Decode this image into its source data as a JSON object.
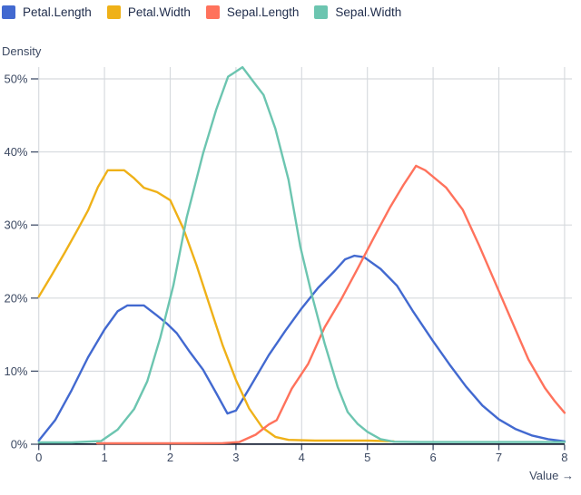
{
  "chart_data": {
    "type": "line",
    "title": "",
    "ylabel": "Density",
    "xlabel": "Value →",
    "xlim": [
      0,
      8
    ],
    "ylim": [
      0,
      52
    ],
    "y_unit": "%",
    "grid": true,
    "legend_position": "top-left",
    "x_ticks": [
      "0",
      "1",
      "2",
      "3",
      "4",
      "5",
      "6",
      "7",
      "8"
    ],
    "x_tick_values": [
      0,
      1,
      2,
      3,
      4,
      5,
      6,
      7,
      8
    ],
    "y_ticks": [
      "0%",
      "10%",
      "20%",
      "30%",
      "40%",
      "50%"
    ],
    "y_tick_values": [
      0,
      10,
      20,
      30,
      40,
      50
    ],
    "colors": {
      "grid": "#d6dade",
      "axis_text": "#3d4a63",
      "tick": "#42506b",
      "baseline": "#1b2438"
    },
    "series": [
      {
        "name": "Petal.Length",
        "color": "#4269d0",
        "points": [
          [
            0,
            0.5
          ],
          [
            0.25,
            3.3
          ],
          [
            0.5,
            7.4
          ],
          [
            0.75,
            11.9
          ],
          [
            1.0,
            15.7
          ],
          [
            1.2,
            18.2
          ],
          [
            1.35,
            19.0
          ],
          [
            1.6,
            19.0
          ],
          [
            1.8,
            17.6
          ],
          [
            1.95,
            16.5
          ],
          [
            2.1,
            15.2
          ],
          [
            2.3,
            12.6
          ],
          [
            2.5,
            10.2
          ],
          [
            2.7,
            7.0
          ],
          [
            2.87,
            4.2
          ],
          [
            3.0,
            4.6
          ],
          [
            3.2,
            7.6
          ],
          [
            3.5,
            12.2
          ],
          [
            3.75,
            15.5
          ],
          [
            4.0,
            18.6
          ],
          [
            4.25,
            21.4
          ],
          [
            4.5,
            23.7
          ],
          [
            4.66,
            25.3
          ],
          [
            4.8,
            25.8
          ],
          [
            4.95,
            25.6
          ],
          [
            5.2,
            24.0
          ],
          [
            5.45,
            21.7
          ],
          [
            5.7,
            18.1
          ],
          [
            6.0,
            14.1
          ],
          [
            6.25,
            10.9
          ],
          [
            6.5,
            7.9
          ],
          [
            6.75,
            5.3
          ],
          [
            7.0,
            3.4
          ],
          [
            7.25,
            2.1
          ],
          [
            7.5,
            1.2
          ],
          [
            7.75,
            0.7
          ],
          [
            8,
            0.4
          ]
        ]
      },
      {
        "name": "Petal.Width",
        "color": "#efb118",
        "points": [
          [
            0,
            20.2
          ],
          [
            0.2,
            23.2
          ],
          [
            0.4,
            26.3
          ],
          [
            0.6,
            29.5
          ],
          [
            0.75,
            32.0
          ],
          [
            0.9,
            35.2
          ],
          [
            1.05,
            37.5
          ],
          [
            1.3,
            37.5
          ],
          [
            1.45,
            36.4
          ],
          [
            1.6,
            35.1
          ],
          [
            1.8,
            34.5
          ],
          [
            2.0,
            33.4
          ],
          [
            2.2,
            29.5
          ],
          [
            2.4,
            24.5
          ],
          [
            2.6,
            19.0
          ],
          [
            2.8,
            13.5
          ],
          [
            3.0,
            8.8
          ],
          [
            3.2,
            4.9
          ],
          [
            3.4,
            2.3
          ],
          [
            3.6,
            1.0
          ],
          [
            3.8,
            0.6
          ],
          [
            4.2,
            0.5
          ],
          [
            4.6,
            0.5
          ],
          [
            5.0,
            0.5
          ],
          [
            5.4,
            0.4
          ]
        ]
      },
      {
        "name": "Sepal.Length",
        "color": "#ff725c",
        "points": [
          [
            0.89,
            0.12
          ],
          [
            1.5,
            0.12
          ],
          [
            2.2,
            0.12
          ],
          [
            2.8,
            0.15
          ],
          [
            3.05,
            0.3
          ],
          [
            3.3,
            1.3
          ],
          [
            3.5,
            2.7
          ],
          [
            3.62,
            3.3
          ],
          [
            3.85,
            7.6
          ],
          [
            4.1,
            11.0
          ],
          [
            4.35,
            16.0
          ],
          [
            4.6,
            19.8
          ],
          [
            4.85,
            24.0
          ],
          [
            5.1,
            28.3
          ],
          [
            5.35,
            32.5
          ],
          [
            5.55,
            35.5
          ],
          [
            5.66,
            37.0
          ],
          [
            5.74,
            38.1
          ],
          [
            5.88,
            37.5
          ],
          [
            6.0,
            36.6
          ],
          [
            6.2,
            35.1
          ],
          [
            6.45,
            32.1
          ],
          [
            6.7,
            27.2
          ],
          [
            6.95,
            22.0
          ],
          [
            7.2,
            16.8
          ],
          [
            7.45,
            11.6
          ],
          [
            7.7,
            7.7
          ],
          [
            7.85,
            5.9
          ],
          [
            8,
            4.3
          ]
        ]
      },
      {
        "name": "Sepal.Width",
        "color": "#6cc5b0",
        "points": [
          [
            0,
            0.25
          ],
          [
            0.5,
            0.25
          ],
          [
            0.95,
            0.45
          ],
          [
            1.2,
            2.0
          ],
          [
            1.45,
            4.8
          ],
          [
            1.65,
            8.6
          ],
          [
            1.85,
            14.6
          ],
          [
            2.05,
            21.8
          ],
          [
            2.25,
            31.0
          ],
          [
            2.5,
            39.8
          ],
          [
            2.7,
            45.8
          ],
          [
            2.88,
            50.3
          ],
          [
            3.1,
            51.6
          ],
          [
            3.3,
            49.2
          ],
          [
            3.42,
            47.8
          ],
          [
            3.6,
            43.2
          ],
          [
            3.8,
            36.2
          ],
          [
            3.98,
            27.0
          ],
          [
            4.15,
            20.6
          ],
          [
            4.35,
            13.8
          ],
          [
            4.55,
            7.8
          ],
          [
            4.7,
            4.4
          ],
          [
            4.85,
            2.8
          ],
          [
            5.0,
            1.7
          ],
          [
            5.2,
            0.7
          ],
          [
            5.4,
            0.35
          ],
          [
            5.8,
            0.3
          ],
          [
            6.4,
            0.3
          ],
          [
            7.2,
            0.3
          ],
          [
            8,
            0.3
          ]
        ]
      }
    ]
  }
}
